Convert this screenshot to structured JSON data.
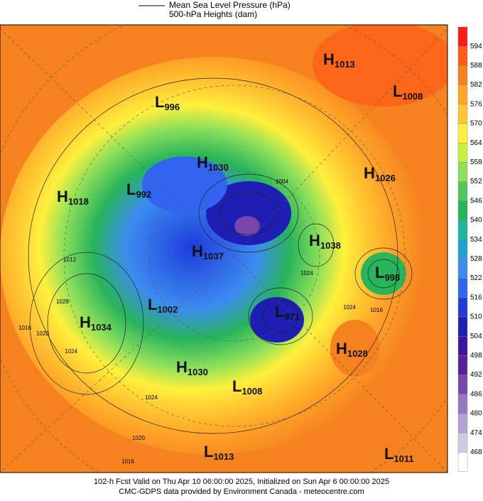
{
  "legend": {
    "line_label": "Mean Sea Level Pressure (hPa)",
    "fill_label": "500-hPa Heights (dam)"
  },
  "colorbar": {
    "levels": [
      594,
      588,
      582,
      576,
      570,
      564,
      558,
      552,
      546,
      540,
      534,
      528,
      522,
      516,
      510,
      504,
      498,
      492,
      486,
      480,
      474,
      468
    ],
    "colors": [
      "#ff1a1a",
      "#ff5a1a",
      "#f5821f",
      "#ffa528",
      "#ffc832",
      "#fff03c",
      "#c8f03c",
      "#8ee05a",
      "#4fc85a",
      "#28b45a",
      "#1eb4a0",
      "#1ea0d2",
      "#3c8cf0",
      "#3264f0",
      "#1e3cdc",
      "#1e1eb4",
      "#3c14a0",
      "#5a1e9b",
      "#7846aa",
      "#9678be",
      "#b4a0d2",
      "#d2c8e6",
      "#ffffff"
    ]
  },
  "centers": [
    {
      "letter": "H",
      "value": 1013
    },
    {
      "letter": "L",
      "value": 1008
    },
    {
      "letter": "L",
      "value": 996
    },
    {
      "letter": "H",
      "value": 1030
    },
    {
      "letter": "H",
      "value": 1026
    },
    {
      "letter": "H",
      "value": 1018
    },
    {
      "letter": "L",
      "value": 992
    },
    {
      "letter": "H",
      "value": 1038
    },
    {
      "letter": "H",
      "value": 1037
    },
    {
      "letter": "L",
      "value": 998
    },
    {
      "letter": "L",
      "value": 1002
    },
    {
      "letter": "L",
      "value": 971
    },
    {
      "letter": "H",
      "value": 1034
    },
    {
      "letter": "H",
      "value": 1028
    },
    {
      "letter": "H",
      "value": 1030
    },
    {
      "letter": "L",
      "value": 1008
    },
    {
      "letter": "L",
      "value": 1013
    },
    {
      "letter": "L",
      "value": 1011
    }
  ],
  "contour_labels": [
    1004,
    1012,
    1028,
    1016,
    1020,
    1024,
    1024,
    1024,
    1016,
    1024,
    1020,
    1016
  ],
  "footer": {
    "line1": "102-h Fcst Valid on Thu Apr 10 06:00:00 2025, Initialized on Sun Apr  6 00:00:00 2025",
    "line2": "CMC-GDPS data provided by Environment Canada - meteocentre.com"
  }
}
